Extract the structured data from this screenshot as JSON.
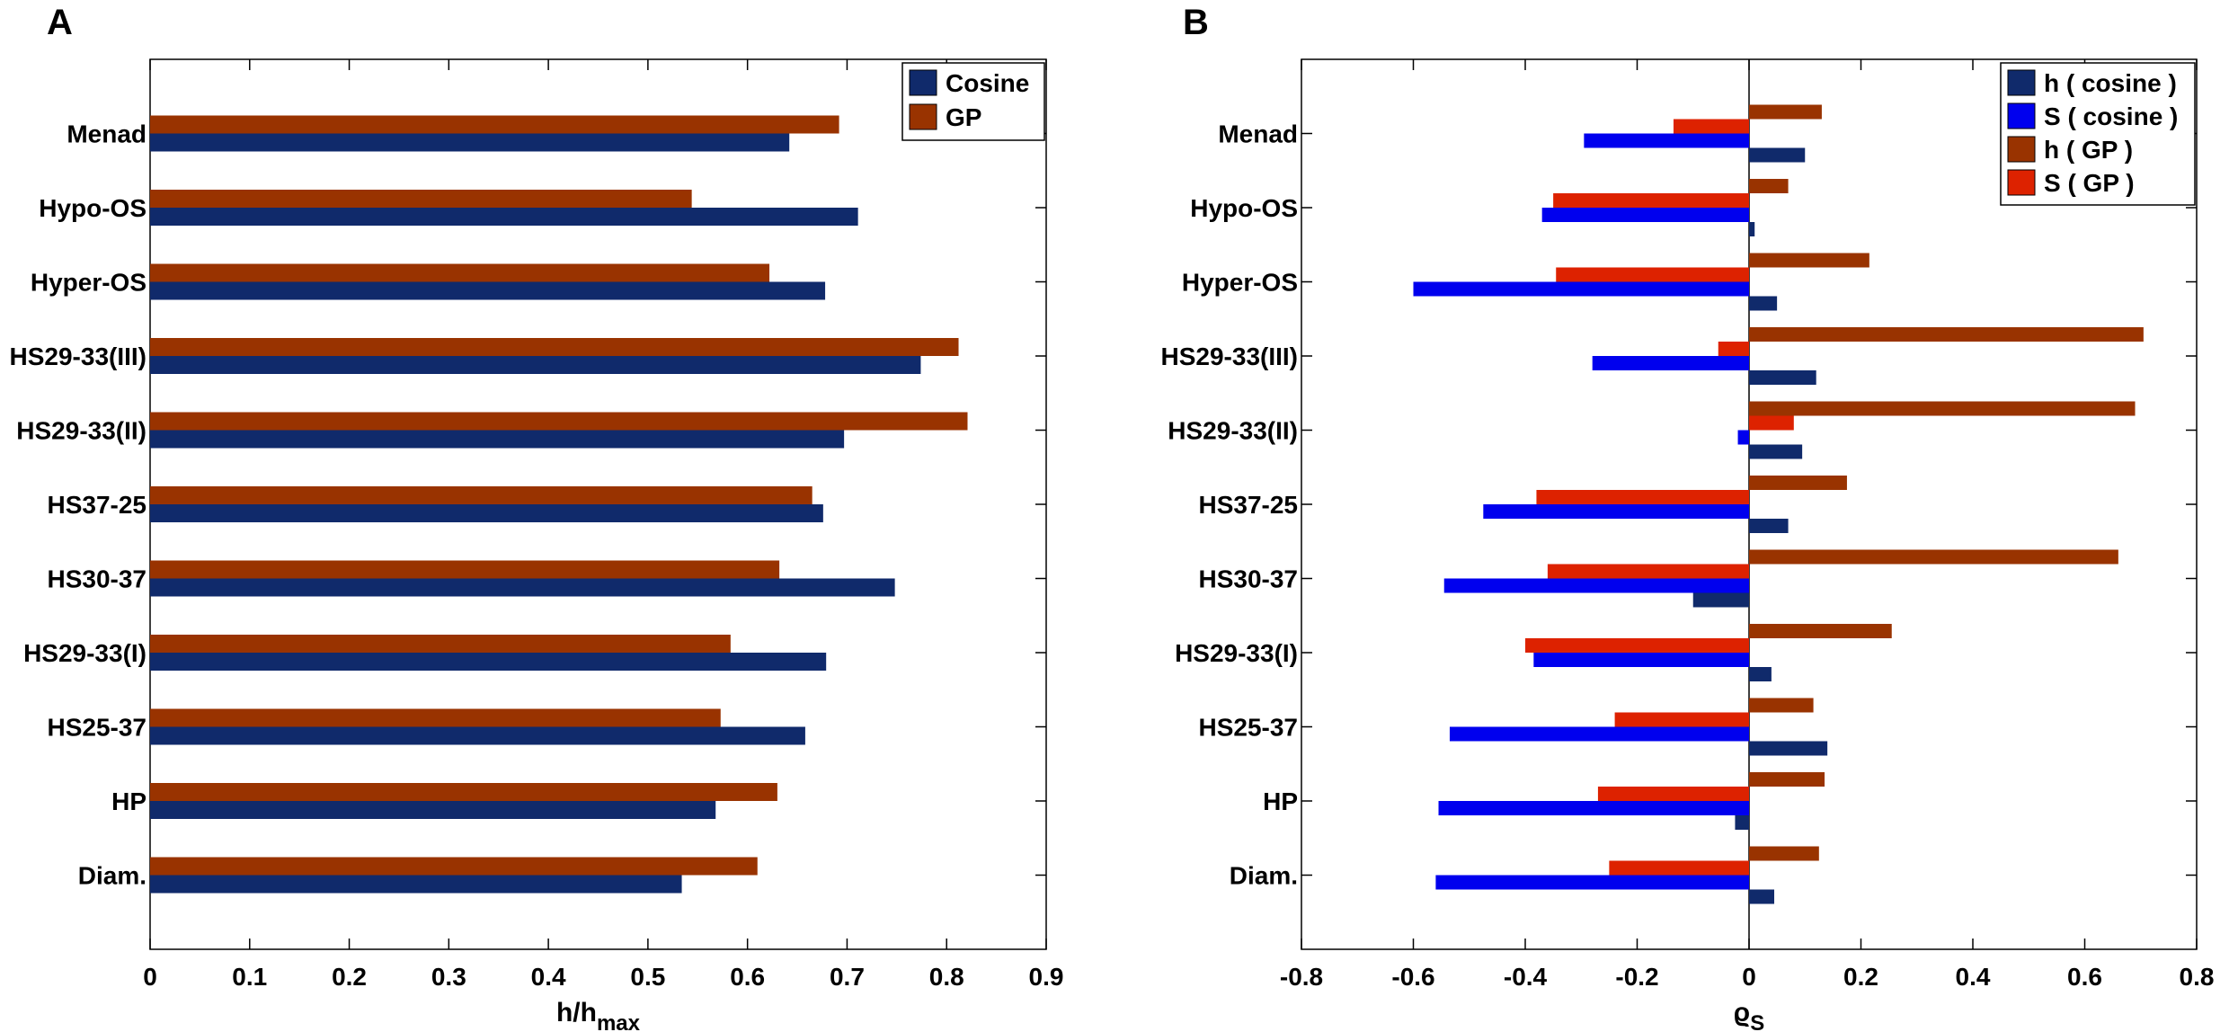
{
  "chart_data": [
    {
      "panel": "A",
      "type": "bar",
      "orientation": "horizontal",
      "categories": [
        "Menad",
        "Hypo-OS",
        "Hyper-OS",
        "HS29-33(III)",
        "HS29-33(II)",
        "HS37-25",
        "HS30-37",
        "HS29-33(I)",
        "HS25-37",
        "HP",
        "Diam."
      ],
      "series": [
        {
          "name": "GP",
          "color": "#993300",
          "values": [
            0.692,
            0.544,
            0.622,
            0.812,
            0.821,
            0.665,
            0.632,
            0.583,
            0.573,
            0.63,
            0.61
          ]
        },
        {
          "name": "Cosine",
          "color": "#102a6b",
          "values": [
            0.642,
            0.711,
            0.678,
            0.774,
            0.697,
            0.676,
            0.748,
            0.679,
            0.658,
            0.568,
            0.534
          ]
        }
      ],
      "legend": [
        {
          "name": "Cosine",
          "color": "#102a6b"
        },
        {
          "name": "GP",
          "color": "#993300"
        }
      ],
      "xlabel": {
        "main": "h/h",
        "sub": "max"
      },
      "xlim": [
        0,
        0.9
      ],
      "xticks": [
        "0",
        "0.1",
        "0.2",
        "0.3",
        "0.4",
        "0.5",
        "0.6",
        "0.7",
        "0.8",
        "0.9"
      ],
      "legend_position": "top-right"
    },
    {
      "panel": "B",
      "type": "bar",
      "orientation": "horizontal",
      "categories": [
        "Menad",
        "Hypo-OS",
        "Hyper-OS",
        "HS29-33(III)",
        "HS29-33(II)",
        "HS37-25",
        "HS30-37",
        "HS29-33(I)",
        "HS25-37",
        "HP",
        "Diam."
      ],
      "series": [
        {
          "name": "h ( GP )",
          "color": "#993300",
          "values": [
            0.13,
            0.07,
            0.215,
            0.705,
            0.69,
            0.175,
            0.66,
            0.255,
            0.115,
            0.135,
            0.125
          ]
        },
        {
          "name": "S ( GP )",
          "color": "#dd2200",
          "values": [
            -0.135,
            -0.35,
            -0.345,
            -0.055,
            0.08,
            -0.38,
            -0.36,
            -0.4,
            -0.24,
            -0.27,
            -0.25
          ]
        },
        {
          "name": "S ( cosine )",
          "color": "#0000ee",
          "values": [
            -0.295,
            -0.37,
            -0.6,
            -0.28,
            -0.02,
            -0.475,
            -0.545,
            -0.385,
            -0.535,
            -0.555,
            -0.56
          ]
        },
        {
          "name": "h ( cosine )",
          "color": "#102a6b",
          "values": [
            0.1,
            0.01,
            0.05,
            0.12,
            0.095,
            0.07,
            -0.1,
            0.04,
            0.14,
            -0.025,
            0.045
          ]
        }
      ],
      "legend": [
        {
          "name": "h ( cosine )",
          "color": "#102a6b"
        },
        {
          "name": "S ( cosine )",
          "color": "#0000ee"
        },
        {
          "name": "h ( GP )",
          "color": "#993300"
        },
        {
          "name": "S ( GP )",
          "color": "#dd2200"
        }
      ],
      "xlabel": {
        "main": "ϱ",
        "sub": "S"
      },
      "xlim": [
        -0.8,
        0.8
      ],
      "xticks": [
        "-0.8",
        "-0.6",
        "-0.4",
        "-0.2",
        "0",
        "0.2",
        "0.4",
        "0.6",
        "0.8"
      ],
      "legend_position": "top-right"
    }
  ],
  "panels": {
    "a": "A",
    "b": "B"
  }
}
